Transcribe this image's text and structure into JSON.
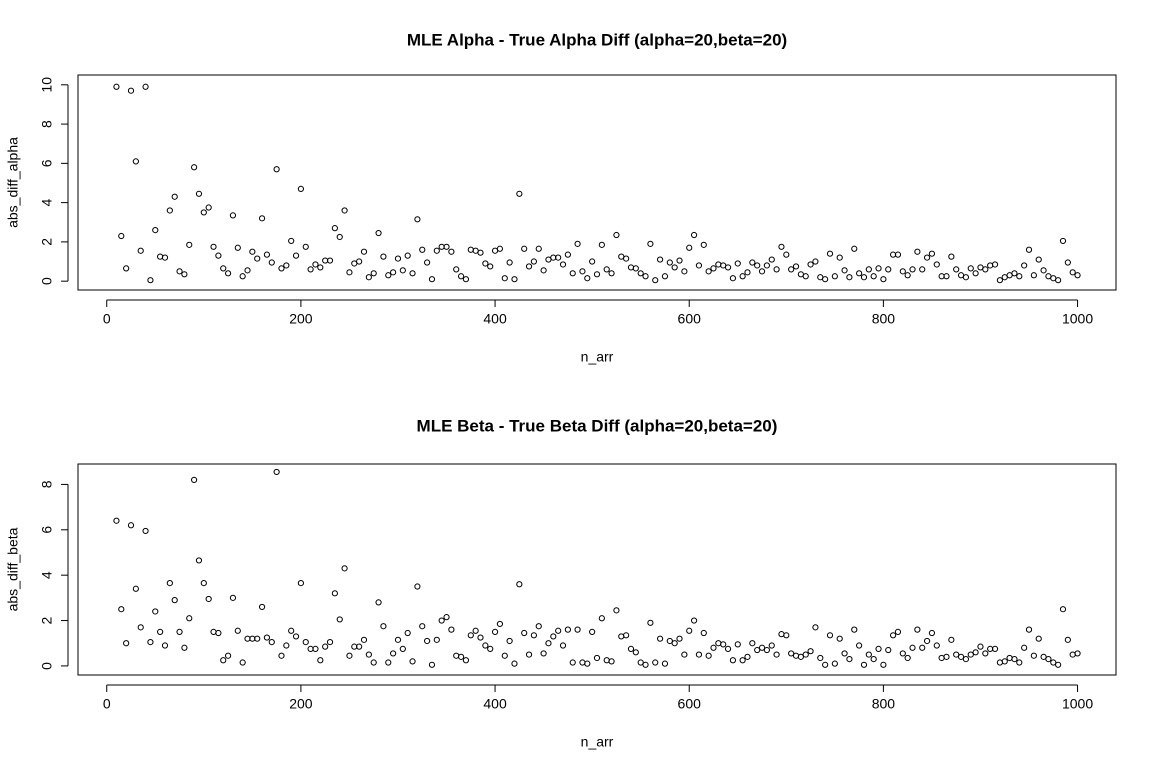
{
  "chart_data": [
    {
      "type": "scatter",
      "title": "MLE Alpha - True Alpha Diff (alpha=20,beta=20)",
      "x_label": "n_arr",
      "y_label": "abs_diff_alpha",
      "color": "#000000",
      "xlim": [
        -29.6,
        1039.6
      ],
      "ylim": [
        -0.45,
        10.5
      ],
      "xticks": [
        0,
        200,
        400,
        600,
        800,
        1000
      ],
      "yticks": [
        0,
        2,
        4,
        6,
        8,
        10
      ],
      "x": [
        10,
        15,
        20,
        25,
        30,
        35,
        40,
        45,
        50,
        55,
        60,
        65,
        70,
        75,
        80,
        85,
        90,
        95,
        100,
        105,
        110,
        115,
        120,
        125,
        130,
        135,
        140,
        145,
        150,
        155,
        160,
        165,
        170,
        175,
        180,
        185,
        190,
        195,
        200,
        205,
        210,
        215,
        220,
        225,
        230,
        235,
        240,
        245,
        250,
        255,
        260,
        265,
        270,
        275,
        280,
        285,
        290,
        295,
        300,
        305,
        310,
        315,
        320,
        325,
        330,
        335,
        340,
        345,
        350,
        355,
        360,
        365,
        370,
        375,
        380,
        385,
        390,
        395,
        400,
        405,
        410,
        415,
        420,
        425,
        430,
        435,
        440,
        445,
        450,
        455,
        460,
        465,
        470,
        475,
        480,
        485,
        490,
        495,
        500,
        505,
        510,
        515,
        520,
        525,
        530,
        535,
        540,
        545,
        550,
        555,
        560,
        565,
        570,
        575,
        580,
        585,
        590,
        595,
        600,
        605,
        610,
        615,
        620,
        625,
        630,
        635,
        640,
        645,
        650,
        655,
        660,
        665,
        670,
        675,
        680,
        685,
        690,
        695,
        700,
        705,
        710,
        715,
        720,
        725,
        730,
        735,
        740,
        745,
        750,
        755,
        760,
        765,
        770,
        775,
        780,
        785,
        790,
        795,
        800,
        805,
        810,
        815,
        820,
        825,
        830,
        835,
        840,
        845,
        850,
        855,
        860,
        865,
        870,
        875,
        880,
        885,
        890,
        895,
        900,
        905,
        910,
        915,
        920,
        925,
        930,
        935,
        940,
        945,
        950,
        955,
        960,
        965,
        970,
        975,
        980,
        985,
        990,
        995,
        1000
      ],
      "values": [
        9.9,
        2.3,
        0.65,
        9.7,
        6.1,
        1.55,
        9.9,
        0.05,
        2.6,
        1.25,
        1.2,
        3.6,
        4.3,
        0.5,
        0.35,
        1.85,
        5.8,
        4.45,
        3.5,
        3.75,
        1.75,
        1.3,
        0.65,
        0.4,
        3.35,
        1.7,
        0.25,
        0.55,
        1.5,
        1.15,
        3.2,
        1.35,
        0.95,
        5.7,
        0.65,
        0.8,
        2.05,
        1.3,
        4.7,
        1.75,
        0.6,
        0.85,
        0.7,
        1.05,
        1.05,
        2.7,
        2.25,
        3.6,
        0.45,
        0.9,
        1.0,
        1.5,
        0.2,
        0.4,
        2.45,
        1.25,
        0.3,
        0.45,
        1.15,
        0.55,
        1.3,
        0.4,
        3.15,
        1.6,
        0.95,
        0.1,
        1.55,
        1.75,
        1.75,
        1.5,
        0.6,
        0.25,
        0.1,
        1.6,
        1.55,
        1.45,
        0.9,
        0.75,
        1.55,
        1.65,
        0.15,
        0.95,
        0.1,
        4.45,
        1.65,
        0.75,
        1.0,
        1.65,
        0.55,
        1.1,
        1.2,
        1.2,
        0.85,
        1.35,
        0.4,
        1.9,
        0.5,
        0.15,
        1.0,
        0.35,
        1.85,
        0.6,
        0.4,
        2.35,
        1.25,
        1.15,
        0.7,
        0.65,
        0.4,
        0.25,
        1.9,
        0.05,
        1.1,
        0.25,
        0.95,
        0.7,
        1.05,
        0.5,
        1.7,
        2.35,
        0.8,
        1.85,
        0.5,
        0.65,
        0.85,
        0.8,
        0.7,
        0.15,
        0.9,
        0.25,
        0.45,
        0.95,
        0.8,
        0.5,
        0.8,
        1.1,
        0.6,
        1.75,
        1.35,
        0.6,
        0.75,
        0.35,
        0.25,
        0.85,
        1.0,
        0.2,
        0.1,
        1.4,
        0.25,
        1.2,
        0.55,
        0.2,
        1.65,
        0.4,
        0.2,
        0.6,
        0.25,
        0.65,
        0.1,
        0.6,
        1.35,
        1.35,
        0.5,
        0.3,
        0.6,
        1.5,
        0.6,
        1.2,
        1.4,
        0.85,
        0.25,
        0.25,
        1.25,
        0.6,
        0.3,
        0.2,
        0.65,
        0.4,
        0.7,
        0.6,
        0.8,
        0.85,
        0.05,
        0.2,
        0.3,
        0.4,
        0.25,
        0.8,
        1.6,
        0.3,
        1.1,
        0.55,
        0.25,
        0.15,
        0.05,
        2.05,
        0.95,
        0.45,
        0.3
      ]
    },
    {
      "type": "scatter",
      "title": "MLE Beta - True Beta Diff (alpha=20,beta=20)",
      "x_label": "n_arr",
      "y_label": "abs_diff_beta",
      "color": "#000000",
      "xlim": [
        -29.6,
        1039.6
      ],
      "ylim": [
        -0.4,
        8.9
      ],
      "xticks": [
        0,
        200,
        400,
        600,
        800,
        1000
      ],
      "yticks": [
        0,
        2,
        4,
        6,
        8
      ],
      "x": [
        10,
        15,
        20,
        25,
        30,
        35,
        40,
        45,
        50,
        55,
        60,
        65,
        70,
        75,
        80,
        85,
        90,
        95,
        100,
        105,
        110,
        115,
        120,
        125,
        130,
        135,
        140,
        145,
        150,
        155,
        160,
        165,
        170,
        175,
        180,
        185,
        190,
        195,
        200,
        205,
        210,
        215,
        220,
        225,
        230,
        235,
        240,
        245,
        250,
        255,
        260,
        265,
        270,
        275,
        280,
        285,
        290,
        295,
        300,
        305,
        310,
        315,
        320,
        325,
        330,
        335,
        340,
        345,
        350,
        355,
        360,
        365,
        370,
        375,
        380,
        385,
        390,
        395,
        400,
        405,
        410,
        415,
        420,
        425,
        430,
        435,
        440,
        445,
        450,
        455,
        460,
        465,
        470,
        475,
        480,
        485,
        490,
        495,
        500,
        505,
        510,
        515,
        520,
        525,
        530,
        535,
        540,
        545,
        550,
        555,
        560,
        565,
        570,
        575,
        580,
        585,
        590,
        595,
        600,
        605,
        610,
        615,
        620,
        625,
        630,
        635,
        640,
        645,
        650,
        655,
        660,
        665,
        670,
        675,
        680,
        685,
        690,
        695,
        700,
        705,
        710,
        715,
        720,
        725,
        730,
        735,
        740,
        745,
        750,
        755,
        760,
        765,
        770,
        775,
        780,
        785,
        790,
        795,
        800,
        805,
        810,
        815,
        820,
        825,
        830,
        835,
        840,
        845,
        850,
        855,
        860,
        865,
        870,
        875,
        880,
        885,
        890,
        895,
        900,
        905,
        910,
        915,
        920,
        925,
        930,
        935,
        940,
        945,
        950,
        955,
        960,
        965,
        970,
        975,
        980,
        985,
        990,
        995,
        1000
      ],
      "values": [
        6.4,
        2.5,
        1.0,
        6.2,
        3.4,
        1.7,
        5.95,
        1.05,
        2.4,
        1.5,
        0.9,
        3.65,
        2.9,
        1.5,
        0.8,
        2.1,
        8.2,
        4.65,
        3.65,
        2.95,
        1.5,
        1.45,
        0.25,
        0.45,
        3.0,
        1.55,
        0.15,
        1.2,
        1.2,
        1.2,
        2.6,
        1.25,
        1.05,
        8.55,
        0.45,
        0.9,
        1.55,
        1.3,
        3.65,
        1.05,
        0.75,
        0.75,
        0.25,
        0.85,
        1.05,
        3.2,
        2.05,
        4.3,
        0.45,
        0.85,
        0.85,
        1.15,
        0.5,
        0.15,
        2.8,
        1.75,
        0.15,
        0.55,
        1.15,
        0.75,
        1.45,
        0.2,
        3.5,
        1.75,
        1.1,
        0.05,
        1.15,
        2.0,
        2.15,
        1.6,
        0.45,
        0.4,
        0.25,
        1.35,
        1.55,
        1.25,
        0.9,
        0.75,
        1.5,
        1.85,
        0.45,
        1.1,
        0.1,
        3.6,
        1.45,
        0.5,
        1.35,
        1.75,
        0.55,
        1.0,
        1.3,
        1.55,
        0.9,
        1.6,
        0.15,
        1.6,
        0.15,
        0.1,
        1.5,
        0.35,
        2.1,
        0.25,
        0.2,
        2.45,
        1.3,
        1.35,
        0.75,
        0.6,
        0.15,
        0.05,
        1.9,
        0.15,
        1.2,
        0.1,
        1.1,
        1.0,
        1.2,
        0.5,
        1.55,
        2.0,
        0.5,
        1.45,
        0.45,
        0.8,
        1.0,
        0.95,
        0.75,
        0.25,
        0.95,
        0.25,
        0.4,
        1.0,
        0.7,
        0.8,
        0.7,
        0.9,
        0.5,
        1.4,
        1.35,
        0.55,
        0.45,
        0.4,
        0.5,
        0.65,
        1.7,
        0.35,
        0.05,
        1.35,
        0.1,
        1.2,
        0.55,
        0.3,
        1.6,
        0.9,
        0.05,
        0.5,
        0.3,
        0.75,
        0.05,
        0.7,
        1.35,
        1.5,
        0.55,
        0.35,
        0.8,
        1.6,
        0.8,
        1.1,
        1.45,
        0.9,
        0.35,
        0.4,
        1.15,
        0.5,
        0.4,
        0.3,
        0.5,
        0.6,
        0.85,
        0.55,
        0.75,
        0.75,
        0.15,
        0.2,
        0.35,
        0.3,
        0.15,
        0.8,
        1.6,
        0.45,
        1.2,
        0.4,
        0.3,
        0.15,
        0.05,
        2.5,
        1.15,
        0.5,
        0.55
      ]
    }
  ]
}
